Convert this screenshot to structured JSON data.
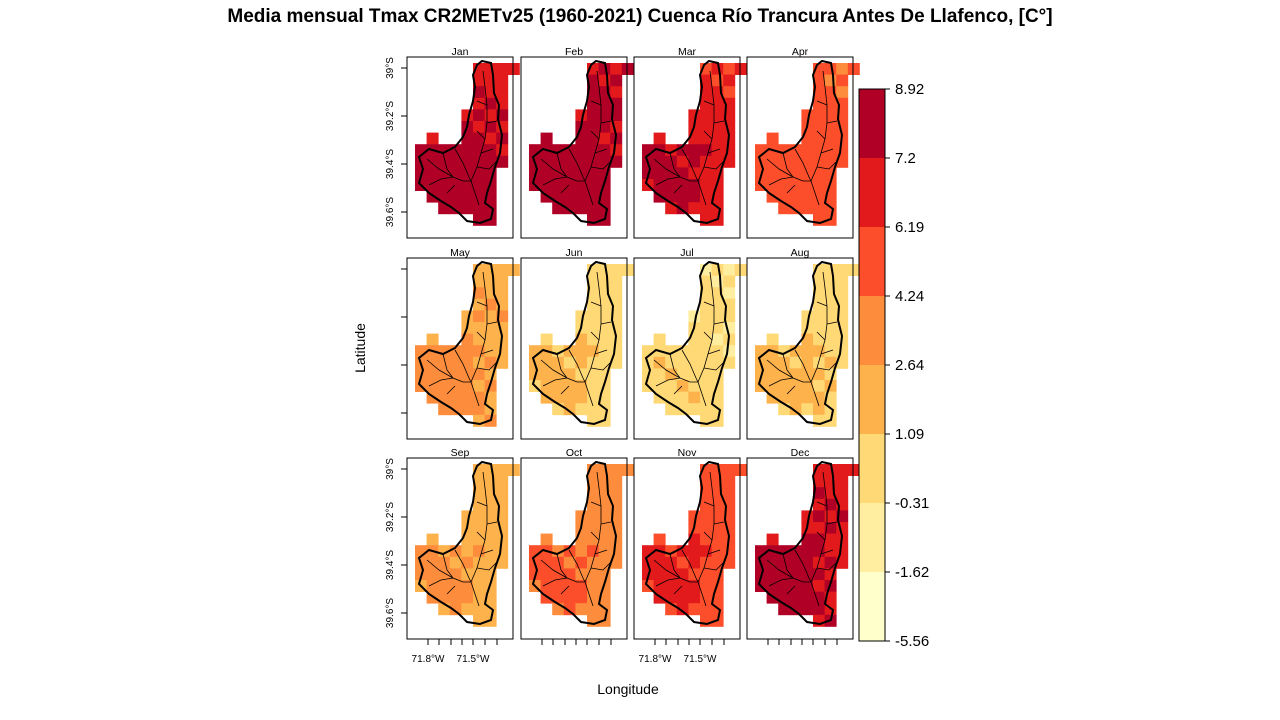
{
  "chart_data": {
    "type": "heatmap",
    "title": "Media mensual Tmax CR2METv25 (1960-2021) Cuenca Río Trancura Antes De Llafenco, [C°]",
    "xlabel": "Longitude",
    "ylabel": "Latitude",
    "panels": [
      {
        "month": "Jan",
        "level": 6.9
      },
      {
        "month": "Feb",
        "level": 7.1
      },
      {
        "month": "Mar",
        "level": 6.3
      },
      {
        "month": "Apr",
        "level": 4.4
      },
      {
        "month": "May",
        "level": 2.1
      },
      {
        "month": "Jun",
        "level": 0.2
      },
      {
        "month": "Jul",
        "level": -0.4
      },
      {
        "month": "Aug",
        "level": 0.3
      },
      {
        "month": "Sep",
        "level": 1.7
      },
      {
        "month": "Oct",
        "level": 3.3
      },
      {
        "month": "Nov",
        "level": 5.3
      },
      {
        "month": "Dec",
        "level": 6.7
      }
    ],
    "y_ticks": [
      "39°S",
      "39.2°S",
      "39.4°S",
      "39.6°S"
    ],
    "x_ticks": [
      "71.8°W",
      "71.5°W"
    ],
    "legend": {
      "breaks": [
        "8.92",
        "7.2",
        "6.19",
        "4.24",
        "2.64",
        "1.09",
        "-0.31",
        "-1.62",
        "-5.56"
      ],
      "break_values": [
        8.92,
        7.2,
        6.19,
        4.24,
        2.64,
        1.09,
        -0.31,
        -1.62,
        -5.56
      ],
      "colors": [
        "#b10026",
        "#e31a1c",
        "#fc4e2a",
        "#fd8d3c",
        "#feb24c",
        "#fed976",
        "#ffeda0",
        "#ffffcc"
      ]
    }
  }
}
